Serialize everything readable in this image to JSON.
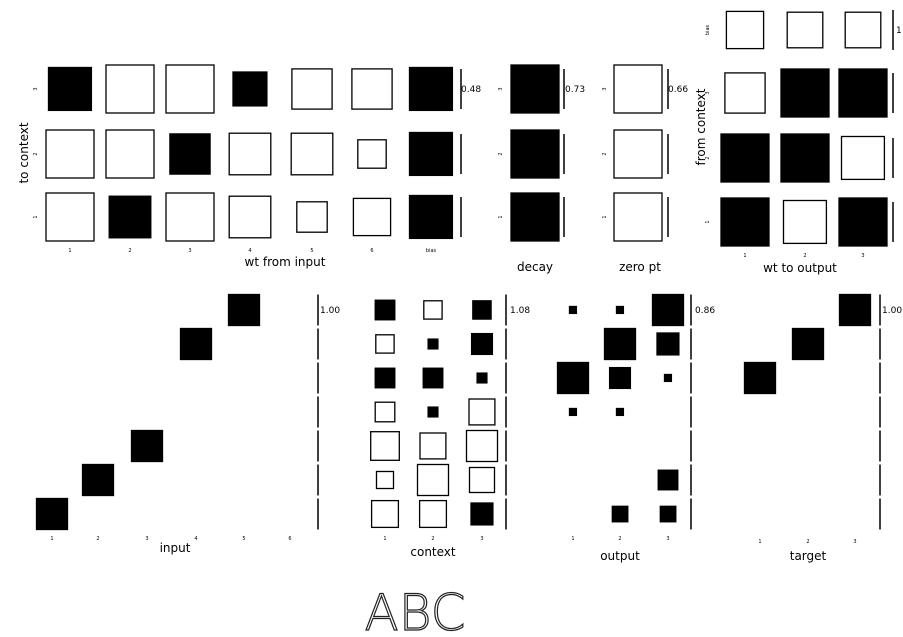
{
  "caption": "ABC",
  "legend": "Hinton diagrams: filled square = positive value, open square = negative value; square size = magnitude",
  "colors": {
    "positive": "#000000",
    "negative": "#ffffff",
    "stroke": "#000000"
  },
  "panels": [
    {
      "id": "wt_from_input",
      "title": "wt from input",
      "scale": "0.48",
      "row_axis_label": "to context",
      "col_ticks": [
        "1",
        "2",
        "3",
        "4",
        "5",
        "6",
        "bias"
      ],
      "row_ticks": [
        "3",
        "2",
        "1"
      ],
      "cells": [
        [
          0.8,
          -1.0,
          -1.0,
          0.5,
          -0.7,
          -0.7,
          0.8
        ],
        [
          -1.0,
          -1.0,
          0.7,
          -0.75,
          -0.75,
          -0.35,
          0.8
        ],
        [
          -1.0,
          0.75,
          -1.0,
          -0.75,
          -0.4,
          -0.6,
          0.8
        ]
      ]
    },
    {
      "id": "decay",
      "title": "decay",
      "scale": "0.73",
      "row_axis_label": "",
      "col_ticks": [],
      "row_ticks": [
        "3",
        "2",
        "1"
      ],
      "cells": [
        [
          1.0
        ],
        [
          1.0
        ],
        [
          1.0
        ]
      ]
    },
    {
      "id": "zero_pt",
      "title": "zero pt",
      "scale": "0.66",
      "row_axis_label": "",
      "col_ticks": [],
      "row_ticks": [
        "3",
        "2",
        "1"
      ],
      "cells": [
        [
          -1.0
        ],
        [
          -1.0
        ],
        [
          -1.0
        ]
      ]
    },
    {
      "id": "wt_to_output",
      "title": "wt to output",
      "scale": "1",
      "row_axis_label": "from context",
      "col_ticks": [
        "1",
        "2",
        "3"
      ],
      "row_ticks": [
        "bias",
        "3",
        "2",
        "1"
      ],
      "cells": [
        [
          -0.6,
          -0.55,
          -0.55
        ],
        [
          -0.7,
          1.0,
          1.0
        ],
        [
          1.0,
          1.0,
          -0.8
        ],
        [
          1.0,
          -0.8,
          1.0
        ]
      ]
    },
    {
      "id": "input",
      "title": "input",
      "scale": "1.00",
      "row_axis_label": "",
      "col_ticks": [
        "1",
        "2",
        "3",
        "4",
        "5",
        "6"
      ],
      "row_ticks": [],
      "cells": [
        [
          0,
          0,
          0,
          0,
          1,
          0
        ],
        [
          0,
          0,
          0,
          1,
          0,
          0
        ],
        [
          0,
          0,
          0,
          0,
          0,
          0
        ],
        [
          0,
          0,
          0,
          0,
          0,
          0
        ],
        [
          0,
          0,
          1,
          0,
          0,
          0
        ],
        [
          0,
          1,
          0,
          0,
          0,
          0
        ],
        [
          1,
          0,
          0,
          0,
          0,
          0
        ]
      ]
    },
    {
      "id": "context",
      "title": "context",
      "scale": "1.08",
      "row_axis_label": "",
      "col_ticks": [
        "1",
        "2",
        "3"
      ],
      "row_ticks": [],
      "cells": [
        [
          0.4,
          -0.35,
          0.35
        ],
        [
          -0.35,
          0.1,
          0.45
        ],
        [
          0.4,
          0.4,
          0.1
        ],
        [
          -0.4,
          0.1,
          -0.7
        ],
        [
          -0.85,
          -0.7,
          -1.0
        ],
        [
          -0.3,
          -1.0,
          -0.65
        ],
        [
          -0.75,
          -0.75,
          0.5
        ]
      ]
    },
    {
      "id": "output",
      "title": "output",
      "scale": "0.86",
      "row_axis_label": "",
      "col_ticks": [
        "1",
        "2",
        "3"
      ],
      "row_ticks": [],
      "cells": [
        [
          0.05,
          0.05,
          1.0
        ],
        [
          0.0,
          1.0,
          0.5
        ],
        [
          1.0,
          0.45,
          0.05
        ],
        [
          0.05,
          0.05,
          0.0
        ],
        [
          0.0,
          0.0,
          0.0
        ],
        [
          0.0,
          0.0,
          0.4
        ],
        [
          0.0,
          0.25,
          0.25
        ]
      ]
    },
    {
      "id": "target",
      "title": "target",
      "scale": "1.00",
      "row_axis_label": "",
      "col_ticks": [
        "1",
        "2",
        "3"
      ],
      "row_ticks": [],
      "cells": [
        [
          0,
          0,
          1
        ],
        [
          0,
          1,
          0
        ],
        [
          1,
          0,
          0
        ],
        [
          0,
          0,
          0
        ],
        [
          0,
          0,
          0
        ],
        [
          0,
          0,
          0
        ],
        [
          0,
          0,
          0
        ]
      ]
    }
  ]
}
